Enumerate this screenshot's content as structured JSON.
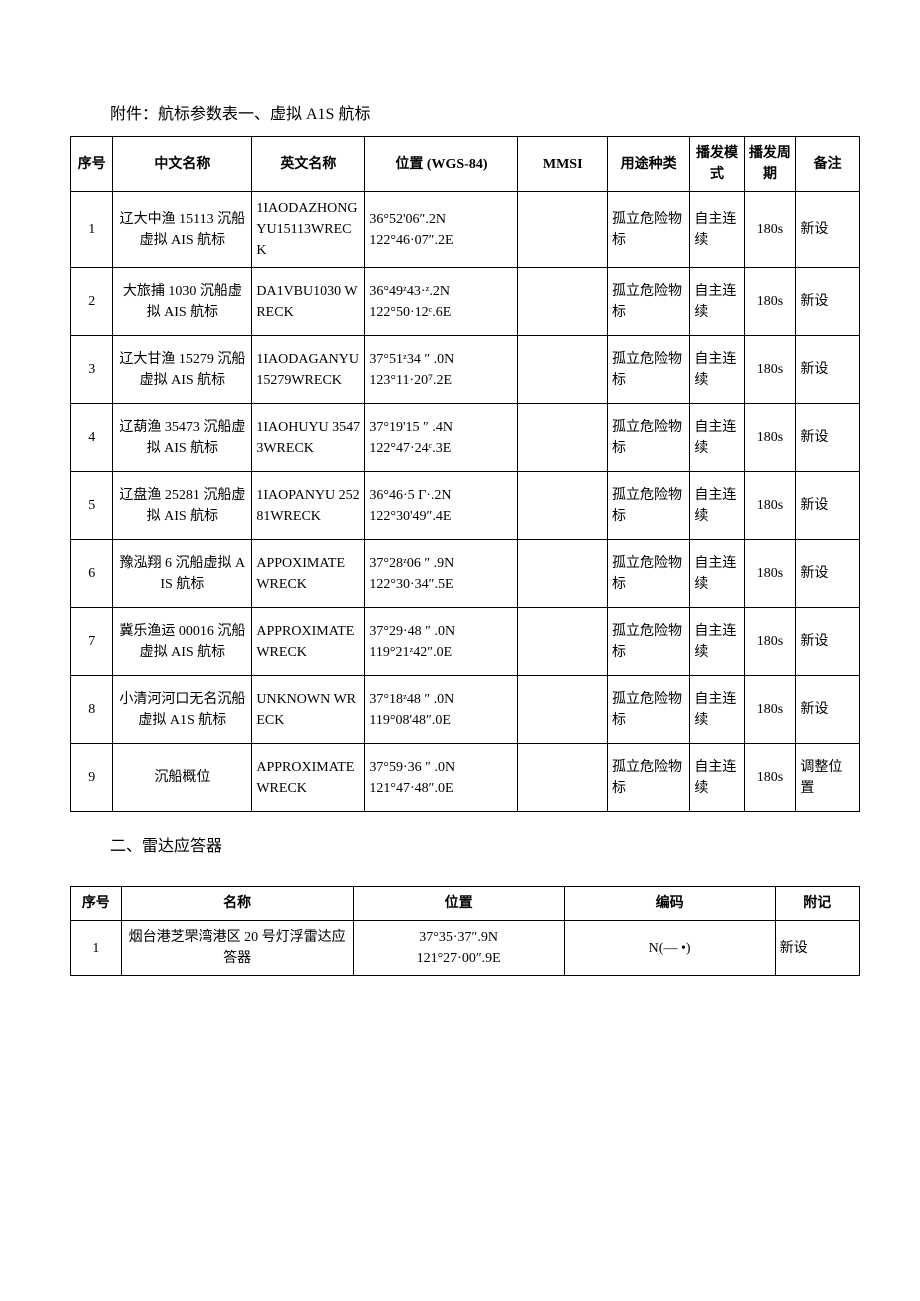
{
  "title": "附件：航标参数表一、虚拟 A1S 航标",
  "table1": {
    "headers": [
      "序号",
      "中文名称",
      "英文名称",
      "位置\n(WGS-84)",
      "MMSI",
      "用途种类",
      "播发模式",
      "播发周期",
      "备注"
    ],
    "rows": [
      {
        "seq": "1",
        "cn": "辽大中渔 15113 沉船虚拟 AIS 航标",
        "en": "1IAODAZHONG\nYU15113WRECK",
        "pos": "36°52'06″.2N\n122°46·07″.2E",
        "mmsi": "",
        "use": "孤立危险物标",
        "mode": "自主连续",
        "period": "180s",
        "remark": "新设"
      },
      {
        "seq": "2",
        "cn": "大旅捕 1030 沉船虚拟 AIS 航标",
        "en": "DA1VBU1030 WRECK",
        "pos": "36°49ᶻ43·ᶻ.2N\n122°50·12ᶜ.6E",
        "mmsi": "",
        "use": "孤立危险物标",
        "mode": "自主连续",
        "period": "180s",
        "remark": "新设"
      },
      {
        "seq": "3",
        "cn": "辽大甘渔 15279 沉船虚拟 AIS 航标",
        "en": "1IAODAGANYU\n15279WRECK",
        "pos": "37°51ᶻ34 ″ .0N\n123°11·20⁷.2E",
        "mmsi": "",
        "use": "孤立危险物标",
        "mode": "自主连续",
        "period": "180s",
        "remark": "新设"
      },
      {
        "seq": "4",
        "cn": "辽葫渔 35473 沉船虚拟 AIS 航标",
        "en": "1IAOHUYU 35473WRECK",
        "pos": "37°19'15 ″ .4N\n122°47·24ᶜ.3E",
        "mmsi": "",
        "use": "孤立危险物标",
        "mode": "自主连续",
        "period": "180s",
        "remark": "新设"
      },
      {
        "seq": "5",
        "cn": "辽盘渔 25281 沉船虚拟 AIS 航标",
        "en": "1IAOPANYU 25281WRECK",
        "pos": "36°46·5 Γ·.2N\n122°30'49″.4E",
        "mmsi": "",
        "use": "孤立危险物标",
        "mode": "自主连续",
        "period": "180s",
        "remark": "新设"
      },
      {
        "seq": "6",
        "cn": "豫泓翔 6 沉船虚拟 AIS 航标",
        "en": "APPOXIMATE WRECK",
        "pos": "37°28ᶻ06 ″ .9N\n122°30·34″.5E",
        "mmsi": "",
        "use": "孤立危险物标",
        "mode": "自主连续",
        "period": "180s",
        "remark": "新设"
      },
      {
        "seq": "7",
        "cn": "冀乐渔运 00016 沉船虚拟 AIS 航标",
        "en": "APPROXIMATE WRECK",
        "pos": "37°29·48 ″ .0N\n119°21ᶻ42″.0E",
        "mmsi": "",
        "use": "孤立危险物标",
        "mode": "自主连续",
        "period": "180s",
        "remark": "新设"
      },
      {
        "seq": "8",
        "cn": "小清河河口无名沉船虚拟 A1S 航标",
        "en": "UNKNOWN WRECK",
        "pos": "37°18ᶻ48 ″ .0N\n119°08'48″.0E",
        "mmsi": "",
        "use": "孤立危险物标",
        "mode": "自主连续",
        "period": "180s",
        "remark": "新设"
      },
      {
        "seq": "9",
        "cn": "沉船概位",
        "en": "APPROXIMATE WRECK",
        "pos": "37°59·36 ″ .0N\n121°47·48″.0E",
        "mmsi": "",
        "use": "孤立危险物标",
        "mode": "自主连续",
        "period": "180s",
        "remark": "调整位置"
      }
    ]
  },
  "section2_title": "二、雷达应答器",
  "table2": {
    "headers": [
      "序号",
      "名称",
      "位置",
      "编码",
      "附记"
    ],
    "rows": [
      {
        "seq": "1",
        "name": "烟台港芝罘湾港区 20 号灯浮雷达应答器",
        "pos": "37°35·37″.9N\n121°27·00″.9E",
        "code": "N(— •)",
        "note": "新设"
      }
    ]
  }
}
